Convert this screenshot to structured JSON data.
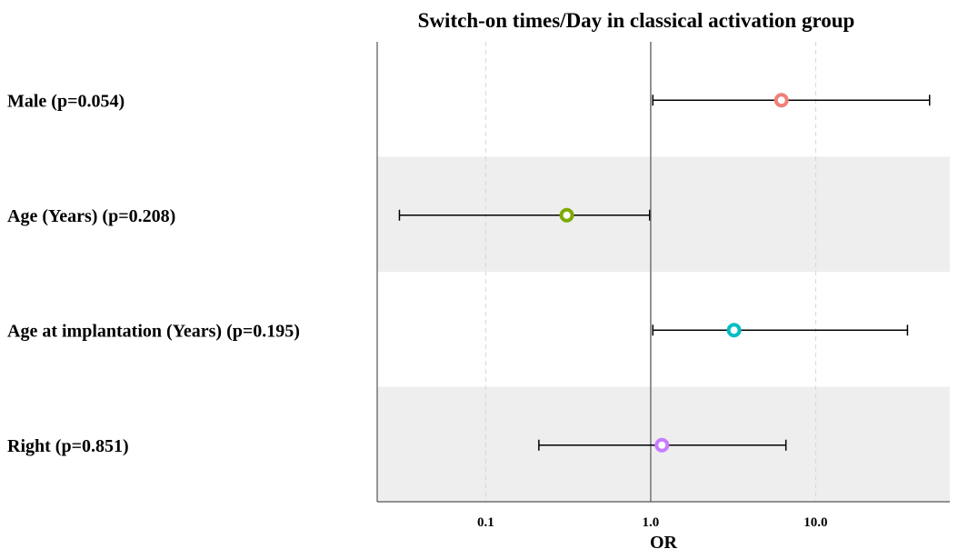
{
  "chart_data": {
    "type": "scatter",
    "title": "Switch-on times/Day in classical activation group",
    "xlabel": "OR",
    "ylabel": "",
    "x_scale": "log10",
    "xlim": [
      0.022,
      65
    ],
    "xticks": [
      {
        "value": 0.1,
        "label": "0.1"
      },
      {
        "value": 1.0,
        "label": "1.0"
      },
      {
        "value": 10.0,
        "label": "10.0"
      }
    ],
    "reference_line": 1.0,
    "grid": true,
    "band_color": "#eeeeee",
    "rows": [
      {
        "label": "Male (p=0.054)",
        "or": 6.2,
        "ci_low": 1.03,
        "ci_high": 49.0,
        "color": "#f07f78",
        "banded": false
      },
      {
        "label": "Age (Years) (p=0.208)",
        "or": 0.31,
        "ci_low": 0.03,
        "ci_high": 0.985,
        "color": "#7caa00",
        "banded": true
      },
      {
        "label": "Age at implantation (Years) (p=0.195)",
        "or": 3.2,
        "ci_low": 1.03,
        "ci_high": 36.0,
        "color": "#00bec4",
        "banded": false
      },
      {
        "label": "Right (p=0.851)",
        "or": 1.17,
        "ci_low": 0.21,
        "ci_high": 6.6,
        "color": "#c77cff",
        "banded": true
      }
    ]
  }
}
